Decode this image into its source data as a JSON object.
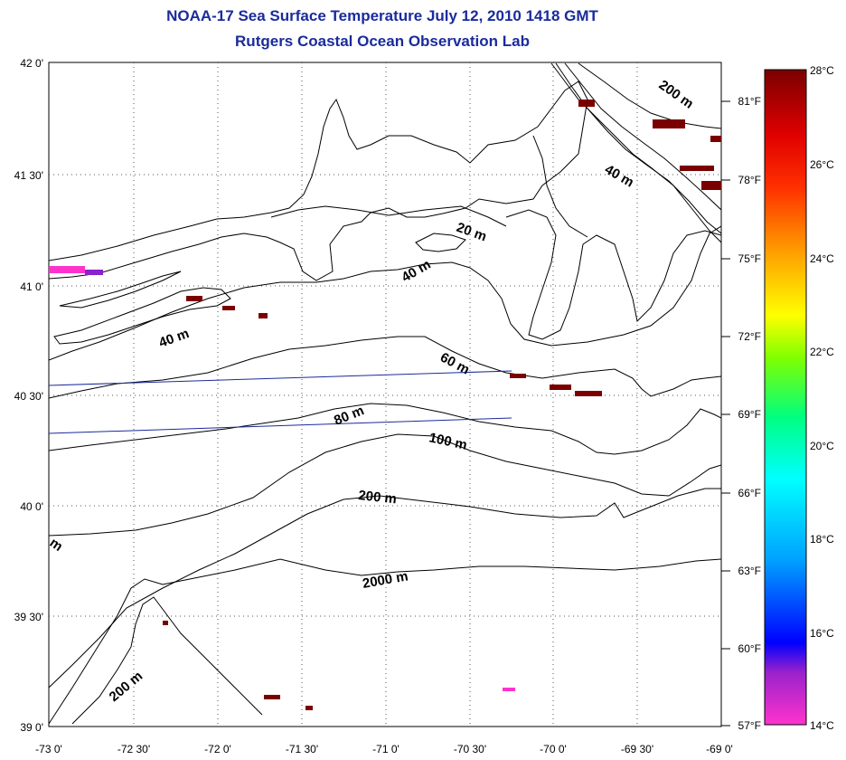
{
  "title": {
    "line1": "NOAA-17 Sea Surface Temperature July 12, 2010 1418 GMT",
    "line2": "Rutgers Coastal Ocean Observation Lab"
  },
  "axes": {
    "lat_labels": [
      "42 0'",
      "41 30'",
      "41 0'",
      "40 30'",
      "40 0'",
      "39 30'",
      "39 0'"
    ],
    "lon_labels": [
      "-73 0'",
      "-72 30'",
      "-72 0'",
      "-71 30'",
      "-71 0'",
      "-70 30'",
      "-70 0'",
      "-69 30'",
      "-69 0'"
    ]
  },
  "fahrenheit_labels": [
    "81°F",
    "78°F",
    "75°F",
    "72°F",
    "69°F",
    "66°F",
    "63°F",
    "60°F",
    "57°F"
  ],
  "colorbar": {
    "celsius_labels": [
      "28°C",
      "26°C",
      "24°C",
      "22°C",
      "20°C",
      "18°C",
      "16°C",
      "14°C"
    ],
    "colors": [
      "#ff33cc",
      "#8822cc",
      "#0000ff",
      "#00a0ff",
      "#00ffff",
      "#00ff80",
      "#80ff00",
      "#ffff00",
      "#ffa000",
      "#ff4000",
      "#ff0000",
      "#a00000",
      "#800000"
    ]
  },
  "contour_labels": [
    "200 m",
    "40 m",
    "20 m",
    "40 m",
    "40 m",
    "60 m",
    "80 m",
    "100 m",
    "200 m",
    "2000 m",
    "200 m",
    "m"
  ]
}
